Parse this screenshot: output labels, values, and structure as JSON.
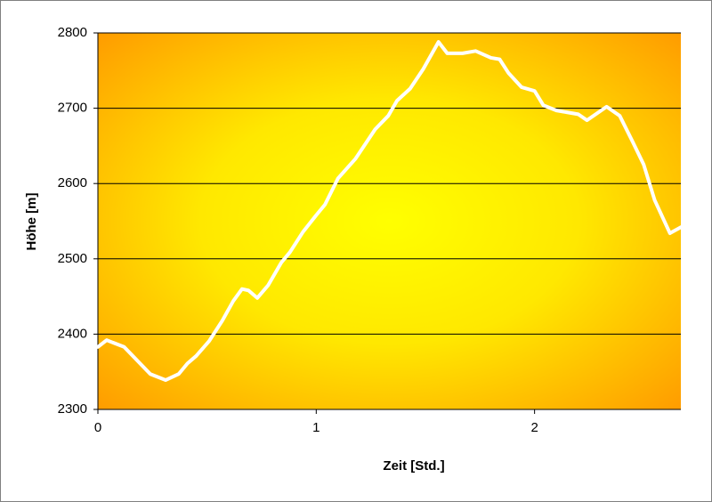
{
  "chart_data": {
    "type": "line",
    "xlabel": "Zeit [Std.]",
    "ylabel": "Höhe [m]",
    "x": [
      0,
      0.04,
      0.12,
      0.18,
      0.24,
      0.31,
      0.37,
      0.41,
      0.45,
      0.51,
      0.57,
      0.62,
      0.66,
      0.69,
      0.73,
      0.78,
      0.84,
      0.88,
      0.94,
      1.0,
      1.04,
      1.1,
      1.18,
      1.27,
      1.33,
      1.37,
      1.43,
      1.49,
      1.56,
      1.6,
      1.67,
      1.73,
      1.8,
      1.84,
      1.88,
      1.94,
      2.0,
      2.04,
      2.1,
      2.2,
      2.24,
      2.33,
      2.39,
      2.45,
      2.5,
      2.55,
      2.62,
      2.67
    ],
    "values": [
      2383,
      2392,
      2383,
      2365,
      2347,
      2339,
      2347,
      2361,
      2371,
      2391,
      2418,
      2444,
      2460,
      2458,
      2448,
      2465,
      2495,
      2509,
      2536,
      2558,
      2572,
      2607,
      2633,
      2672,
      2690,
      2710,
      2726,
      2752,
      2788,
      2773,
      2773,
      2776,
      2767,
      2765,
      2747,
      2728,
      2723,
      2704,
      2697,
      2692,
      2684,
      2702,
      2690,
      2655,
      2625,
      2578,
      2534,
      2542
    ],
    "color": "#ffffff",
    "xlim": [
      0,
      2.67
    ],
    "xticks": [
      0,
      1,
      2
    ],
    "ylim": [
      2300,
      2800
    ],
    "yticks": [
      2300,
      2400,
      2500,
      2600,
      2700,
      2800
    ],
    "grid": true
  }
}
